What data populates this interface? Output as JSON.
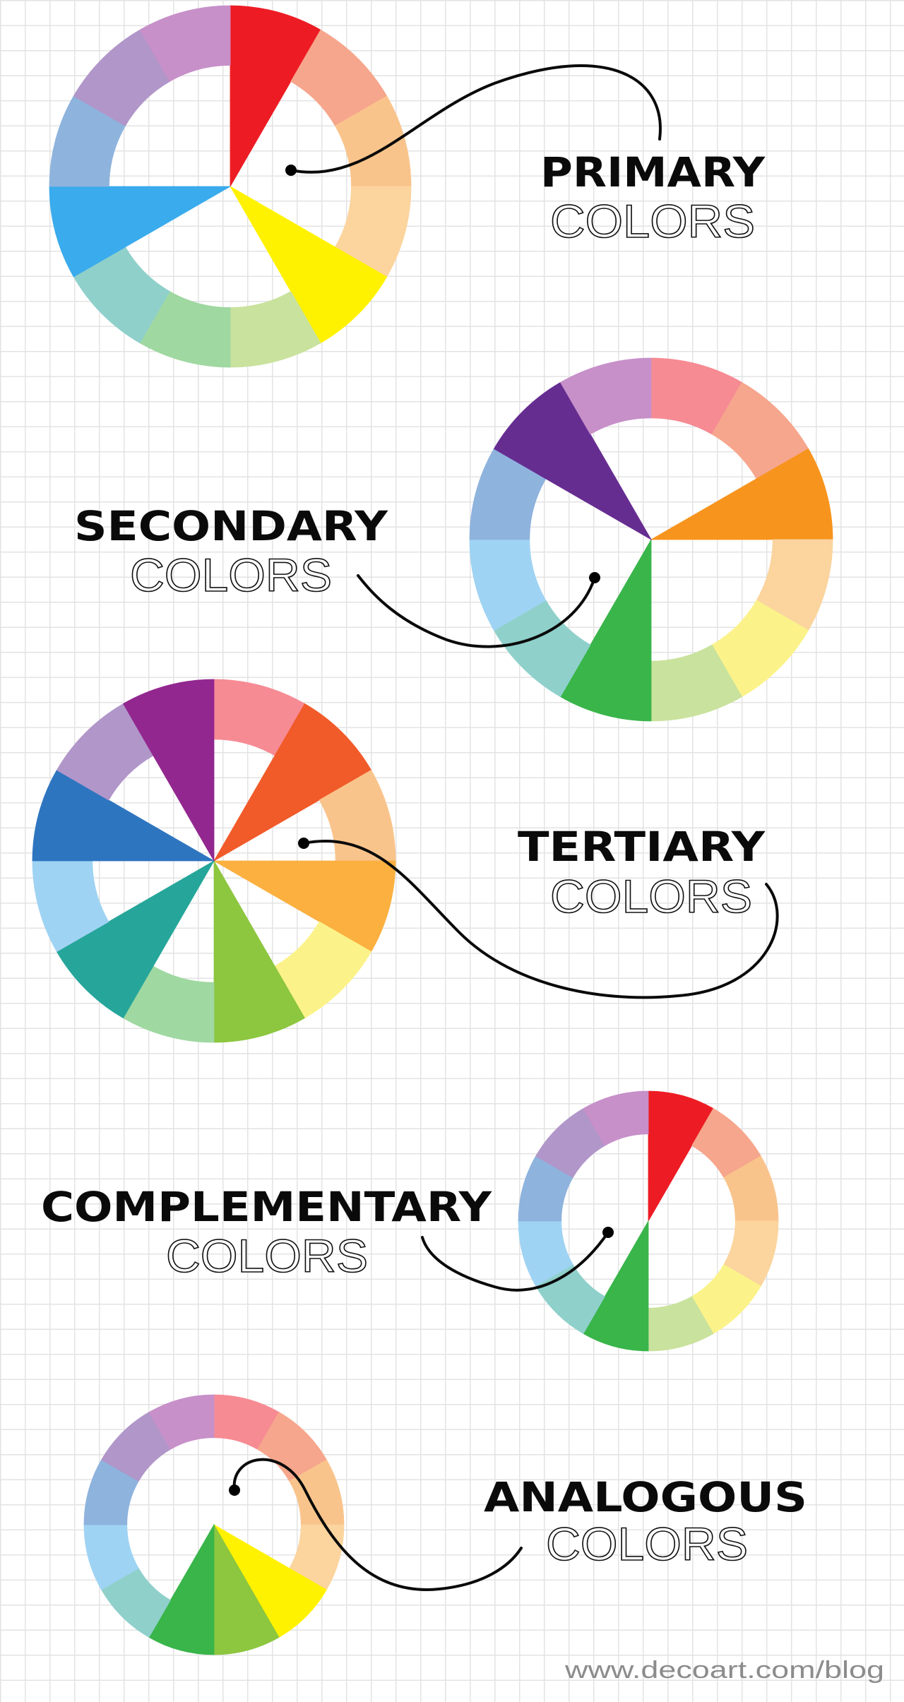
{
  "palette": {
    "ring": [
      "#f68b94",
      "#f6a68c",
      "#f9c48c",
      "#fbd49e",
      "#fbf38a",
      "#c9e29d",
      "#9fd8a1",
      "#8fd0cb",
      "#9fd3f3",
      "#8eb3dd",
      "#b196c9",
      "#c790c9"
    ],
    "full": [
      "#ed1c24",
      "#f15a29",
      "#f7941d",
      "#fbb040",
      "#fff200",
      "#8dc63f",
      "#39b54a",
      "#26a69a",
      "#3aabec",
      "#2e75c0",
      "#662d91",
      "#92278f"
    ]
  },
  "wheels": [
    {
      "id": "primary",
      "bold": "PRIMARY",
      "thin": "COLORS",
      "highlighted": [
        0,
        4,
        8
      ]
    },
    {
      "id": "secondary",
      "bold": "SECONDARY",
      "thin": "COLORS",
      "highlighted": [
        2,
        6,
        10
      ]
    },
    {
      "id": "tertiary",
      "bold": "TERTIARY",
      "thin": "COLORS",
      "highlighted": [
        1,
        3,
        5,
        7,
        9,
        11
      ]
    },
    {
      "id": "complementary",
      "bold": "COMPLEMENTARY",
      "thin": "COLORS",
      "highlighted": [
        0,
        6
      ]
    },
    {
      "id": "analogous",
      "bold": "ANALOGOUS",
      "thin": "COLORS",
      "highlighted": [
        4,
        5,
        6
      ]
    }
  ],
  "footer": {
    "url": "www.decoart.com/blog"
  }
}
